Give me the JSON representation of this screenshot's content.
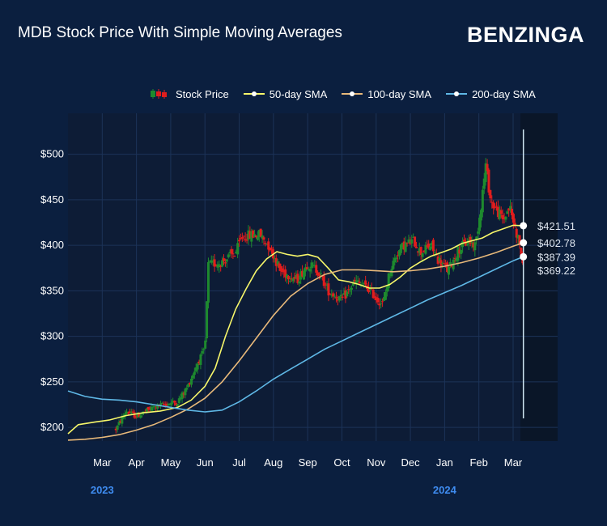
{
  "header": {
    "title": "MDB Stock Price With Simple Moving Averages",
    "brand": "BENZINGA"
  },
  "legend": {
    "stock": "Stock Price",
    "sma50": "50-day SMA",
    "sma100": "100-day SMA",
    "sma200": "200-day SMA"
  },
  "colors": {
    "background": "#0b1f3f",
    "plot": "#0d1c36",
    "up": "#1e8a2e",
    "down": "#e11d1d",
    "sma50": "#f7f76a",
    "sma100": "#e8b97a",
    "sma200": "#5fb8e6",
    "year": "#3f8cf0"
  },
  "chart_data": {
    "type": "line",
    "title": "MDB Stock Price With Simple Moving Averages",
    "x_range": [
      0,
      14.3
    ],
    "ylim": [
      185,
      545
    ],
    "y_ticks": [
      {
        "value": 200,
        "label": "$200"
      },
      {
        "value": 250,
        "label": "$250"
      },
      {
        "value": 300,
        "label": "$300"
      },
      {
        "value": 350,
        "label": "$350"
      },
      {
        "value": 400,
        "label": "$400"
      },
      {
        "value": 450,
        "label": "$450"
      },
      {
        "value": 500,
        "label": "$500"
      }
    ],
    "x_ticks": [
      {
        "x": 1,
        "label": "Mar"
      },
      {
        "x": 2,
        "label": "Apr"
      },
      {
        "x": 3,
        "label": "May"
      },
      {
        "x": 4,
        "label": "Jun"
      },
      {
        "x": 5,
        "label": "Jul"
      },
      {
        "x": 6,
        "label": "Aug"
      },
      {
        "x": 7,
        "label": "Sep"
      },
      {
        "x": 8,
        "label": "Oct"
      },
      {
        "x": 9,
        "label": "Nov"
      },
      {
        "x": 10,
        "label": "Dec"
      },
      {
        "x": 11,
        "label": "Jan"
      },
      {
        "x": 12,
        "label": "Feb"
      },
      {
        "x": 13,
        "label": "Mar"
      }
    ],
    "years": [
      {
        "x": 1,
        "label": "2023"
      },
      {
        "x": 11,
        "label": "2024"
      }
    ],
    "current_x": 13.3,
    "price_path": [
      [
        1.4,
        198
      ],
      [
        1.7,
        218
      ],
      [
        2.0,
        212
      ],
      [
        2.5,
        222
      ],
      [
        2.9,
        226
      ],
      [
        3.2,
        228
      ],
      [
        3.5,
        245
      ],
      [
        3.8,
        272
      ],
      [
        4.0,
        285
      ],
      [
        4.1,
        378
      ],
      [
        4.5,
        382
      ],
      [
        4.9,
        392
      ],
      [
        5.1,
        410
      ],
      [
        5.6,
        412
      ],
      [
        5.9,
        398
      ],
      [
        6.2,
        372
      ],
      [
        6.7,
        362
      ],
      [
        7.0,
        380
      ],
      [
        7.3,
        372
      ],
      [
        7.6,
        350
      ],
      [
        8.0,
        340
      ],
      [
        8.4,
        360
      ],
      [
        8.8,
        352
      ],
      [
        9.0,
        342
      ],
      [
        9.2,
        335
      ],
      [
        9.4,
        372
      ],
      [
        9.6,
        390
      ],
      [
        9.8,
        400
      ],
      [
        10.1,
        405
      ],
      [
        10.3,
        392
      ],
      [
        10.6,
        400
      ],
      [
        10.8,
        385
      ],
      [
        11.1,
        372
      ],
      [
        11.4,
        395
      ],
      [
        11.7,
        405
      ],
      [
        11.9,
        400
      ],
      [
        12.05,
        440
      ],
      [
        12.2,
        488
      ],
      [
        12.35,
        448
      ],
      [
        12.5,
        440
      ],
      [
        12.7,
        428
      ],
      [
        12.9,
        442
      ],
      [
        13.05,
        420
      ],
      [
        13.2,
        400
      ],
      [
        13.3,
        369.22
      ]
    ],
    "series": [
      {
        "name": "50-day SMA",
        "color": "#f7f76a",
        "last_value": 421.51,
        "last_label": "$421.51",
        "points": [
          [
            0,
            193
          ],
          [
            0.3,
            203
          ],
          [
            0.8,
            206
          ],
          [
            1.2,
            208
          ],
          [
            1.7,
            213
          ],
          [
            2.2,
            216
          ],
          [
            2.7,
            218
          ],
          [
            3.2,
            222
          ],
          [
            3.6,
            230
          ],
          [
            4.0,
            245
          ],
          [
            4.3,
            265
          ],
          [
            4.6,
            300
          ],
          [
            4.9,
            330
          ],
          [
            5.2,
            352
          ],
          [
            5.5,
            372
          ],
          [
            5.8,
            385
          ],
          [
            6.1,
            393
          ],
          [
            6.4,
            390
          ],
          [
            6.7,
            388
          ],
          [
            7.0,
            390
          ],
          [
            7.3,
            387
          ],
          [
            7.6,
            375
          ],
          [
            7.9,
            362
          ],
          [
            8.2,
            360
          ],
          [
            8.5,
            357
          ],
          [
            8.8,
            353
          ],
          [
            9.1,
            353
          ],
          [
            9.4,
            357
          ],
          [
            9.7,
            365
          ],
          [
            10.0,
            375
          ],
          [
            10.3,
            382
          ],
          [
            10.6,
            388
          ],
          [
            10.9,
            392
          ],
          [
            11.2,
            396
          ],
          [
            11.5,
            402
          ],
          [
            11.8,
            405
          ],
          [
            12.1,
            408
          ],
          [
            12.4,
            414
          ],
          [
            12.7,
            418
          ],
          [
            13.0,
            422
          ],
          [
            13.3,
            421.51
          ]
        ]
      },
      {
        "name": "100-day SMA",
        "color": "#e8b97a",
        "last_value": 402.78,
        "last_label": "$402.78",
        "points": [
          [
            0,
            186
          ],
          [
            0.5,
            187
          ],
          [
            1.0,
            189
          ],
          [
            1.5,
            192
          ],
          [
            2.0,
            197
          ],
          [
            2.5,
            203
          ],
          [
            3.0,
            211
          ],
          [
            3.5,
            220
          ],
          [
            4.0,
            232
          ],
          [
            4.5,
            250
          ],
          [
            5.0,
            273
          ],
          [
            5.5,
            298
          ],
          [
            6.0,
            323
          ],
          [
            6.5,
            344
          ],
          [
            7.0,
            358
          ],
          [
            7.5,
            368
          ],
          [
            8.0,
            373
          ],
          [
            8.5,
            373
          ],
          [
            9.0,
            372
          ],
          [
            9.5,
            371
          ],
          [
            10.0,
            372
          ],
          [
            10.5,
            374
          ],
          [
            11.0,
            377
          ],
          [
            11.5,
            381
          ],
          [
            12.0,
            386
          ],
          [
            12.5,
            392
          ],
          [
            13.0,
            399
          ],
          [
            13.3,
            402.78
          ]
        ]
      },
      {
        "name": "200-day SMA",
        "color": "#5fb8e6",
        "last_value": 387.39,
        "last_label": "$387.39",
        "points": [
          [
            0,
            240
          ],
          [
            0.5,
            234
          ],
          [
            1.0,
            231
          ],
          [
            1.5,
            230
          ],
          [
            2.0,
            228
          ],
          [
            2.5,
            225
          ],
          [
            3.0,
            222
          ],
          [
            3.5,
            219
          ],
          [
            4.0,
            217
          ],
          [
            4.5,
            219
          ],
          [
            5.0,
            228
          ],
          [
            5.5,
            240
          ],
          [
            6.0,
            253
          ],
          [
            6.5,
            264
          ],
          [
            7.0,
            275
          ],
          [
            7.5,
            286
          ],
          [
            8.0,
            295
          ],
          [
            8.5,
            304
          ],
          [
            9.0,
            313
          ],
          [
            9.5,
            322
          ],
          [
            10.0,
            331
          ],
          [
            10.5,
            340
          ],
          [
            11.0,
            348
          ],
          [
            11.5,
            356
          ],
          [
            12.0,
            365
          ],
          [
            12.5,
            374
          ],
          [
            13.0,
            383
          ],
          [
            13.3,
            387.39
          ]
        ]
      }
    ],
    "last_price": 369.22,
    "last_price_label": "$369.22"
  }
}
